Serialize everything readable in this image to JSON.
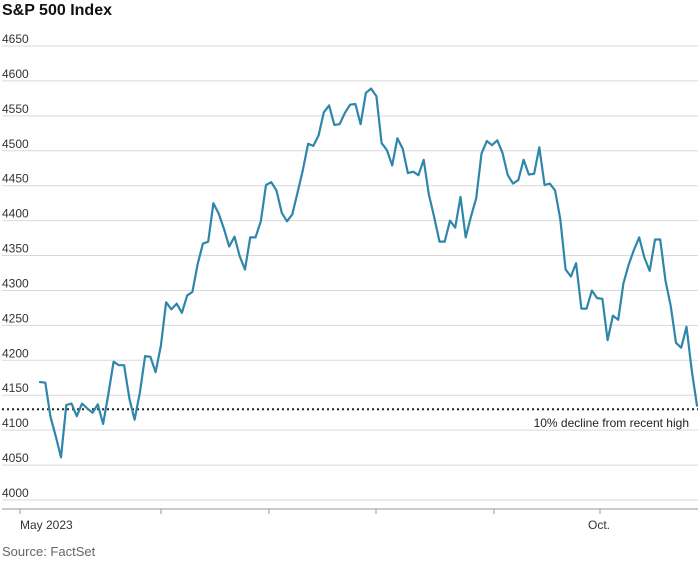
{
  "chart_data": {
    "type": "line",
    "title": "S&P 500 Index",
    "source": "Source: FactSet",
    "ylim": [
      4000,
      4650
    ],
    "yticks": [
      4000,
      4050,
      4100,
      4150,
      4200,
      4250,
      4300,
      4350,
      4400,
      4450,
      4500,
      4550,
      4600,
      4650
    ],
    "grid": true,
    "x_labels": [
      "May 2023",
      "Oct."
    ],
    "threshold": {
      "value": 4130,
      "label": "10% decline from recent high"
    },
    "series": [
      {
        "color": "#2e86ab",
        "values": [
          4169,
          4168,
          4119,
          4091,
          4061,
          4136,
          4138,
          4120,
          4138,
          4131,
          4125,
          4137,
          4109,
          4151,
          4198,
          4193,
          4193,
          4145,
          4115,
          4154,
          4206,
          4205,
          4183,
          4221,
          4283,
          4273,
          4281,
          4268,
          4293,
          4298,
          4338,
          4367,
          4370,
          4425,
          4410,
          4388,
          4363,
          4377,
          4349,
          4330,
          4376,
          4376,
          4399,
          4451,
          4455,
          4443,
          4411,
          4399,
          4409,
          4440,
          4472,
          4510,
          4507,
          4522,
          4555,
          4565,
          4537,
          4538,
          4554,
          4566,
          4567,
          4538,
          4583,
          4589,
          4578,
          4511,
          4501,
          4479,
          4518,
          4503,
          4468,
          4470,
          4465,
          4487,
          4437,
          4405,
          4370,
          4370,
          4400,
          4390,
          4434,
          4376,
          4406,
          4432,
          4496,
          4514,
          4508,
          4515,
          4497,
          4465,
          4453,
          4458,
          4487,
          4466,
          4467,
          4505,
          4451,
          4453,
          4443,
          4402,
          4330,
          4320,
          4339,
          4274,
          4274,
          4300,
          4289,
          4288,
          4229,
          4264,
          4258,
          4310,
          4337,
          4358,
          4376,
          4347,
          4328,
          4373,
          4373,
          4314,
          4278,
          4225,
          4218,
          4248,
          4186,
          4135
        ]
      }
    ]
  }
}
